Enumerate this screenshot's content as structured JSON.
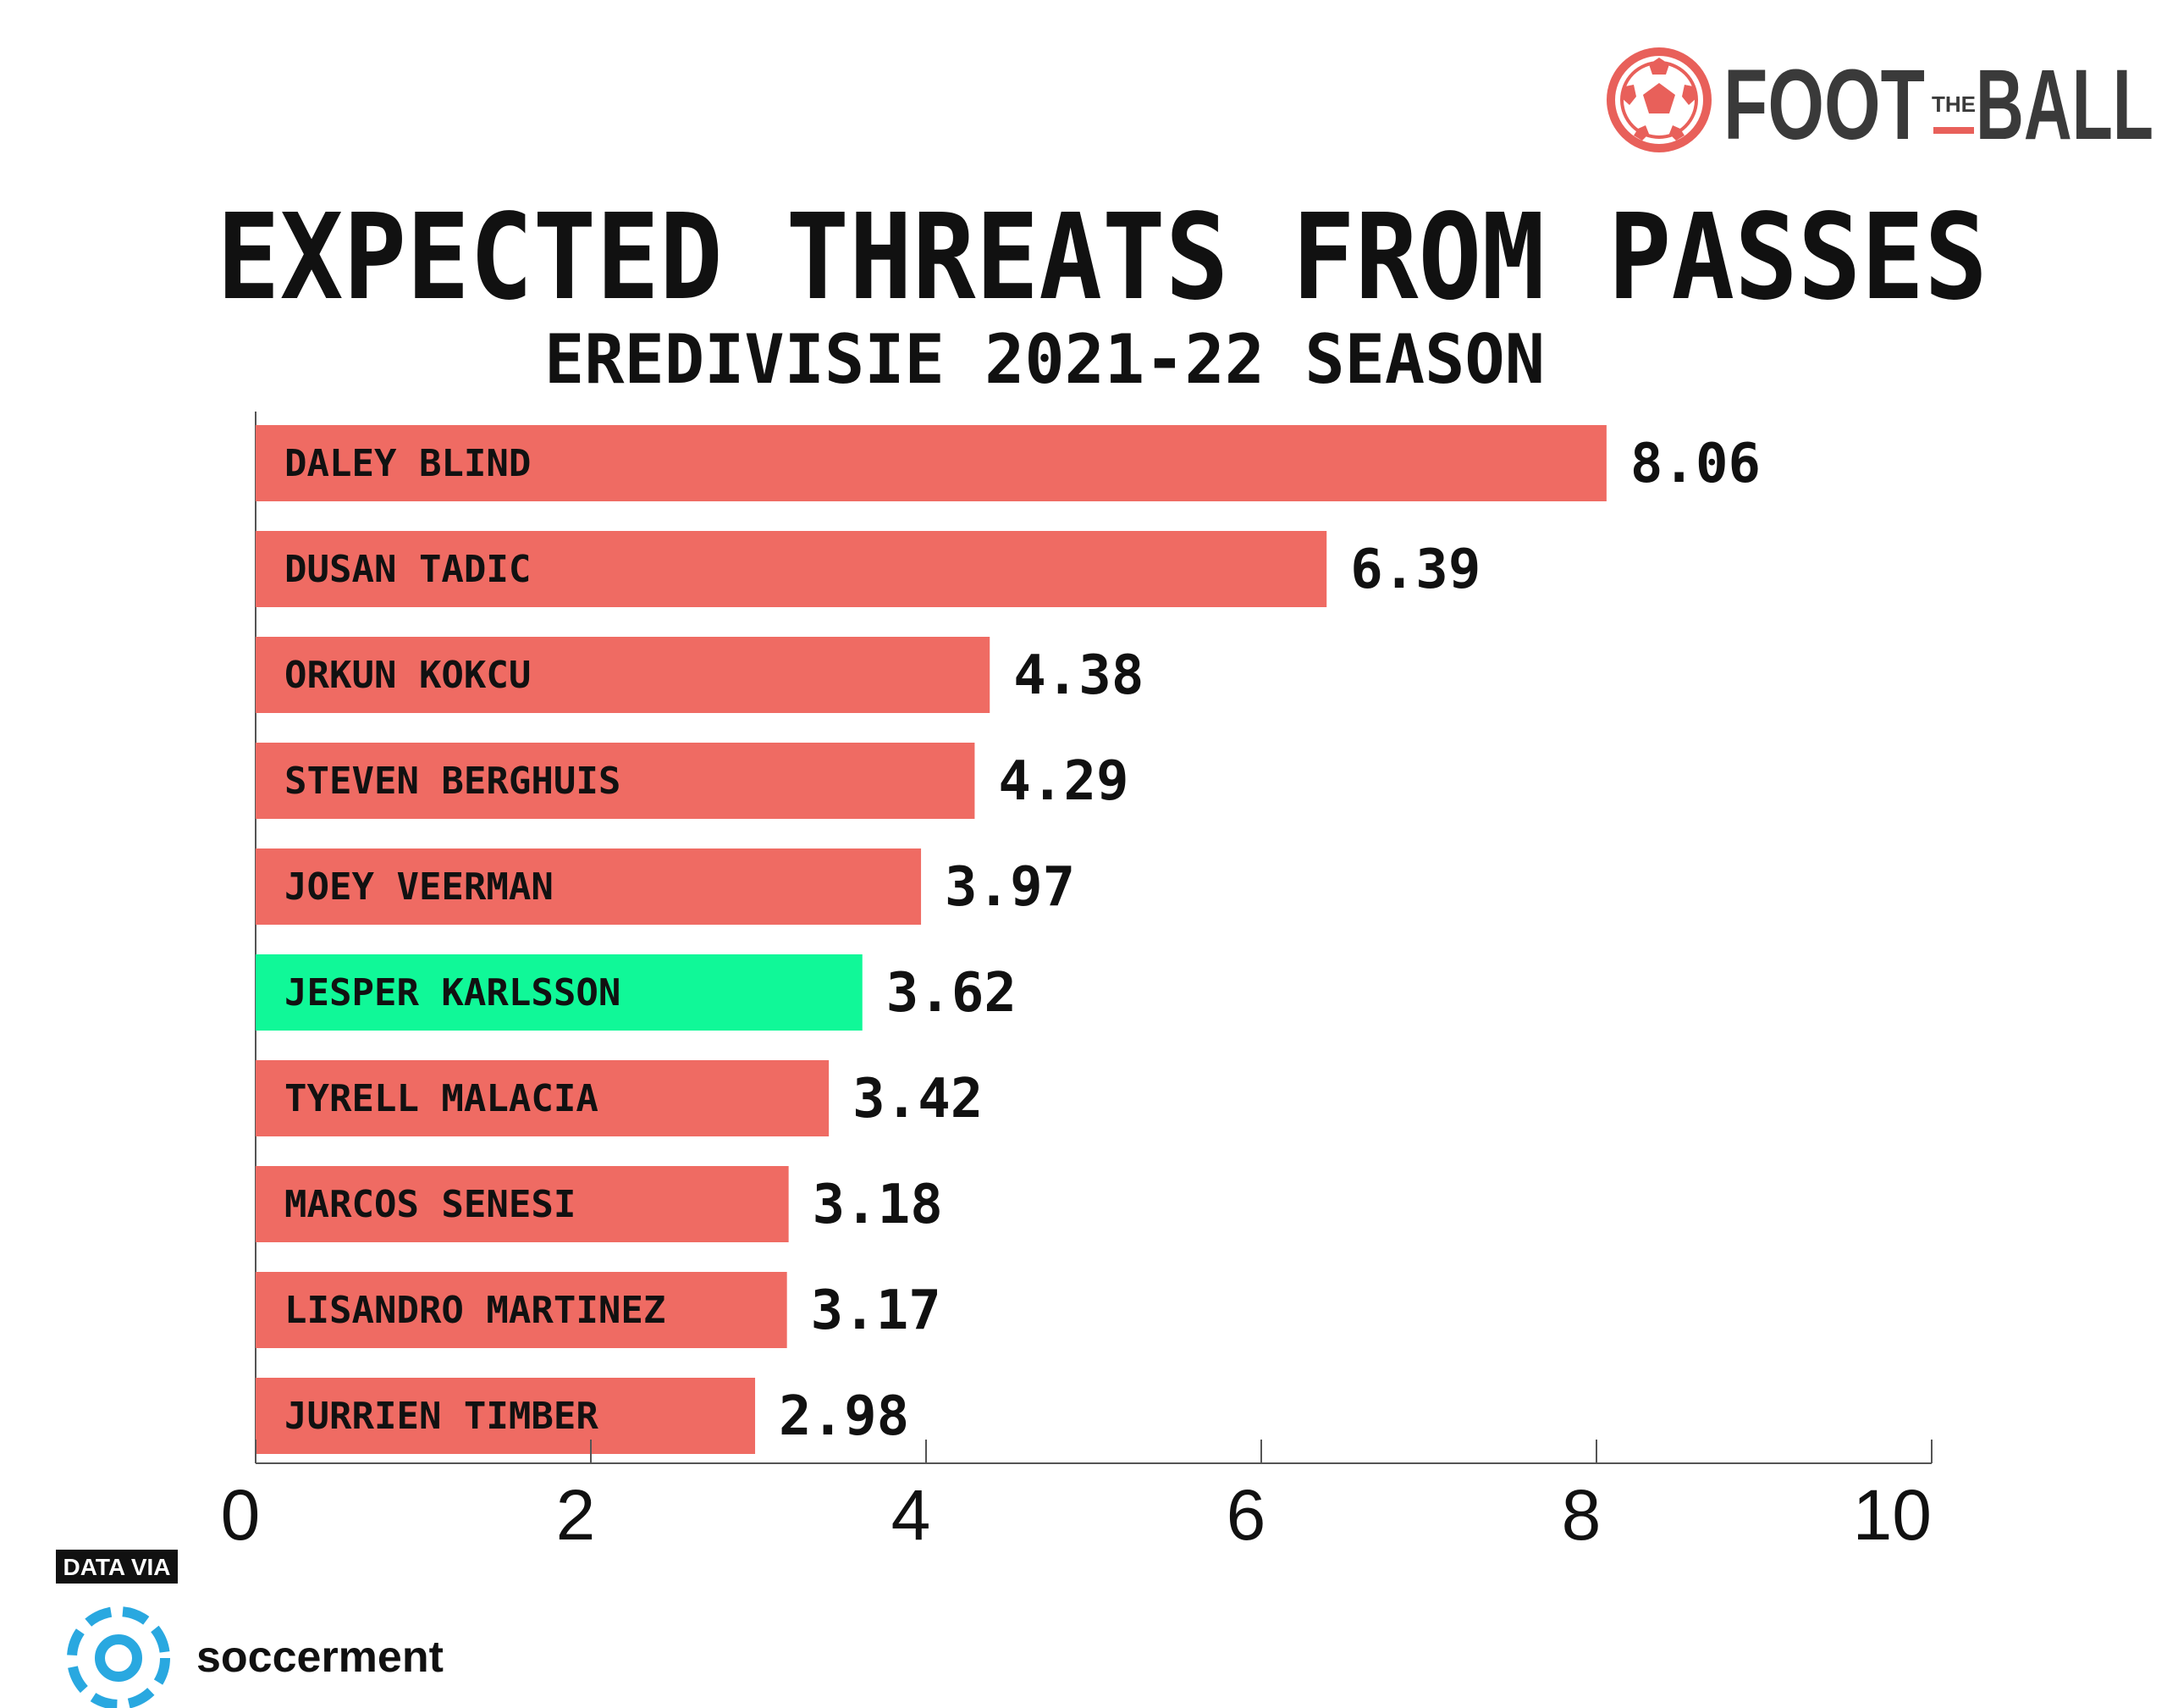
{
  "header": {
    "brand_left": "FOOT",
    "brand_the": "THE",
    "brand_right": "BALL"
  },
  "footer": {
    "data_via": "DATA VIA",
    "source_name": "soccerment"
  },
  "colors": {
    "bar_default": "#EF6B63",
    "bar_highlight": "#10F898",
    "logo_accent": "#E8605A",
    "brand_text": "#3A3A3A",
    "source_blue": "#29A8E0",
    "text": "#111111"
  },
  "chart_data": {
    "type": "bar",
    "orientation": "horizontal",
    "title": "EXPECTED THREATS FROM PASSES",
    "subtitle": "EREDIVISIE 2021-22 SEASON",
    "categories": [
      "DALEY BLIND",
      "DUSAN TADIC",
      "ORKUN KOKCU",
      "STEVEN BERGHUIS",
      "JOEY VEERMAN",
      "JESPER KARLSSON",
      "TYRELL MALACIA",
      "MARCOS SENESI",
      "LISANDRO MARTINEZ",
      "JURRIEN TIMBER"
    ],
    "values": [
      8.06,
      6.39,
      4.38,
      4.29,
      3.97,
      3.62,
      3.42,
      3.18,
      3.17,
      2.98
    ],
    "value_labels": [
      "8.06",
      "6.39",
      "4.38",
      "4.29",
      "3.97",
      "3.62",
      "3.42",
      "3.18",
      "3.17",
      "2.98"
    ],
    "highlight": "JESPER KARLSSON",
    "xlim": [
      0,
      10
    ],
    "xticks": [
      0,
      2,
      4,
      6,
      8,
      10
    ],
    "xtick_labels": [
      "0",
      "2",
      "4",
      "6",
      "8",
      "10"
    ],
    "xlabel": "",
    "ylabel": "",
    "grid": false,
    "legend": "none"
  }
}
